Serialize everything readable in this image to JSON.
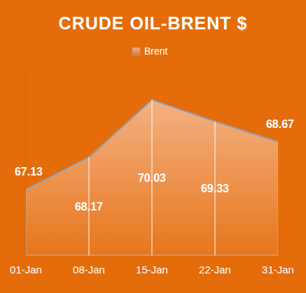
{
  "chart_data": {
    "type": "area",
    "title": "CRUDE OIL-BRENT $",
    "categories": [
      "01-Jan",
      "08-Jan",
      "15-Jan",
      "22-Jan",
      "31-Jan"
    ],
    "series": [
      {
        "name": "Brent",
        "color": "#F4B183",
        "values": [
          67.13,
          68.17,
          70.03,
          69.33,
          68.67
        ]
      }
    ],
    "ylim": [
      65,
      71
    ],
    "tick_labels": "x",
    "data_labels": true,
    "legend": "top",
    "grid": false
  }
}
